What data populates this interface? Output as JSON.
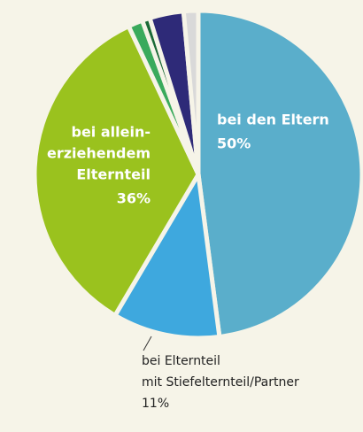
{
  "chart_data": {
    "type": "pie",
    "categories": [
      [
        "bei den Eltern"
      ],
      [
        "bei Elternteil",
        "mit Stiefelternteil/Partner"
      ],
      [
        "bei allein-",
        "erziehendem",
        "Elternteil"
      ],
      null,
      null,
      null,
      null
    ],
    "values": [
      50,
      11,
      36,
      1.5,
      0.8,
      3.5,
      1.5
    ],
    "value_labels": [
      "50%",
      "11%",
      "36%",
      null,
      null,
      null,
      null
    ],
    "colors": [
      "#5aaecb",
      "#3ea8de",
      "#9ac21e",
      "#3aaa5c",
      "#1b6a37",
      "#2e2a78",
      "#d9d9d9"
    ]
  }
}
